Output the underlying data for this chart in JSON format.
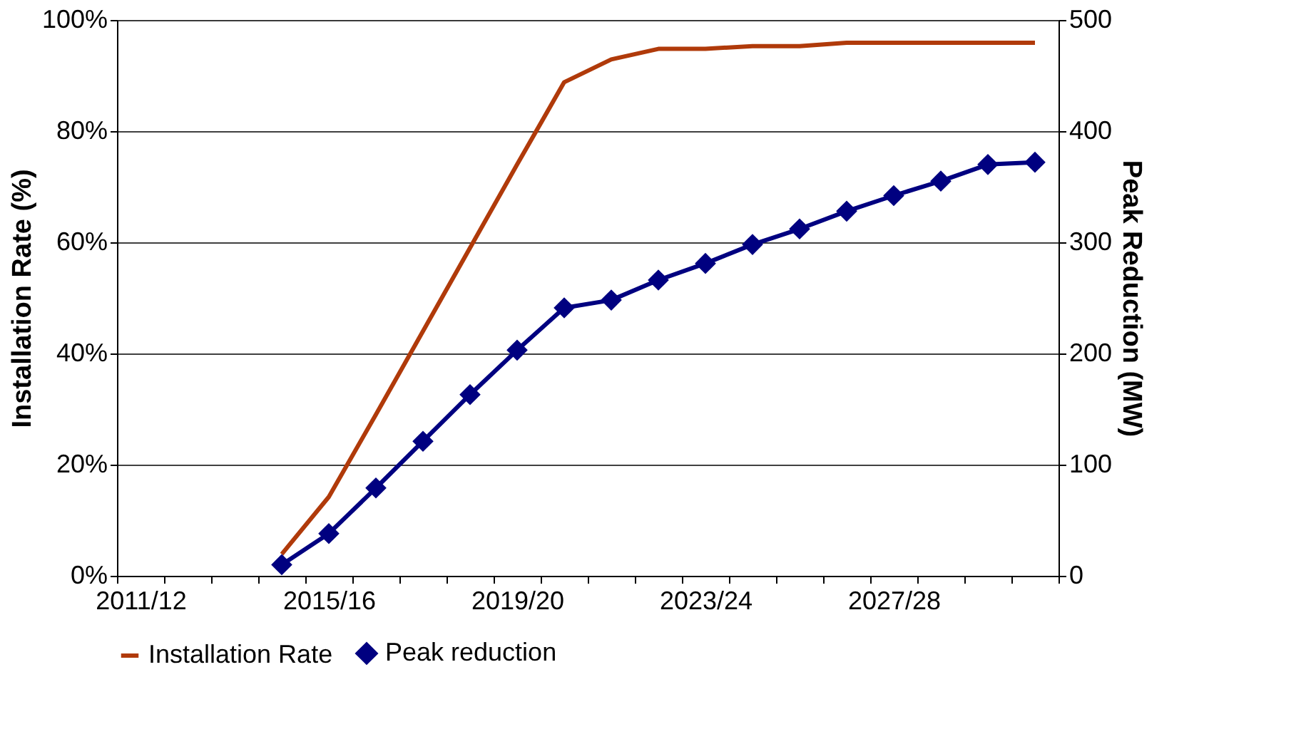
{
  "chart_data": {
    "type": "line",
    "categories": [
      "2011/12",
      null,
      null,
      null,
      "2015/16",
      null,
      null,
      null,
      "2019/20",
      null,
      null,
      null,
      "2023/24",
      null,
      null,
      null,
      "2027/28",
      null,
      null,
      null
    ],
    "ylabel": "Installation Rate (%)",
    "y2label": "Peak Reduction (MW)",
    "ylim": [
      0,
      100
    ],
    "yticks": [
      {
        "value": 0,
        "label": "0%"
      },
      {
        "value": 20,
        "label": "20%"
      },
      {
        "value": 40,
        "label": "40%"
      },
      {
        "value": 60,
        "label": "60%"
      },
      {
        "value": 80,
        "label": "80%"
      },
      {
        "value": 100,
        "label": "100%"
      }
    ],
    "y2lim": [
      0,
      500
    ],
    "y2ticks": [
      0,
      100,
      200,
      300,
      400,
      500
    ],
    "grid": "y",
    "legend": "bottom",
    "series": [
      {
        "name": "Installation Rate",
        "color": "#b03a0a",
        "marker": "none",
        "values": [
          null,
          null,
          null,
          3.9,
          14.2,
          29,
          44,
          59,
          74,
          88.8,
          92.9,
          94.8,
          94.8,
          95.3,
          95.3,
          95.9,
          95.9,
          95.9,
          95.9,
          95.9
        ]
      },
      {
        "name": "Peak reduction",
        "color": "#000080",
        "marker": "diamond",
        "axis": "y2",
        "values": [
          null,
          null,
          null,
          10,
          38,
          79,
          121,
          163,
          203,
          241,
          248,
          266,
          281,
          298,
          312,
          328,
          342,
          355,
          370,
          372
        ]
      }
    ]
  }
}
